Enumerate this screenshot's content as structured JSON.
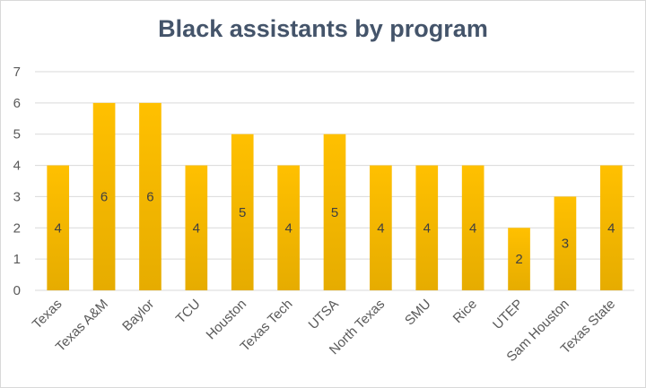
{
  "chart_data": {
    "type": "bar",
    "title": "Black assistants by program",
    "xlabel": "",
    "ylabel": "",
    "categories": [
      "Texas",
      "Texas A&M",
      "Baylor",
      "TCU",
      "Houston",
      "Texas Tech",
      "UTSA",
      "North Texas",
      "SMU",
      "Rice",
      "UTEP",
      "Sam Houston",
      "Texas State"
    ],
    "values": [
      4,
      6,
      6,
      4,
      5,
      4,
      5,
      4,
      4,
      4,
      2,
      3,
      4
    ],
    "ylim": [
      0,
      7
    ],
    "yticks": [
      "0",
      "1",
      "2",
      "3",
      "4",
      "5",
      "6",
      "7"
    ],
    "grid": true,
    "legend": "none",
    "data_labels": true,
    "colors": {
      "bar_top": "#ffc000",
      "bar_bottom": "#e6ac00",
      "title": "#44546a",
      "grid": "#d9d9d9"
    }
  }
}
